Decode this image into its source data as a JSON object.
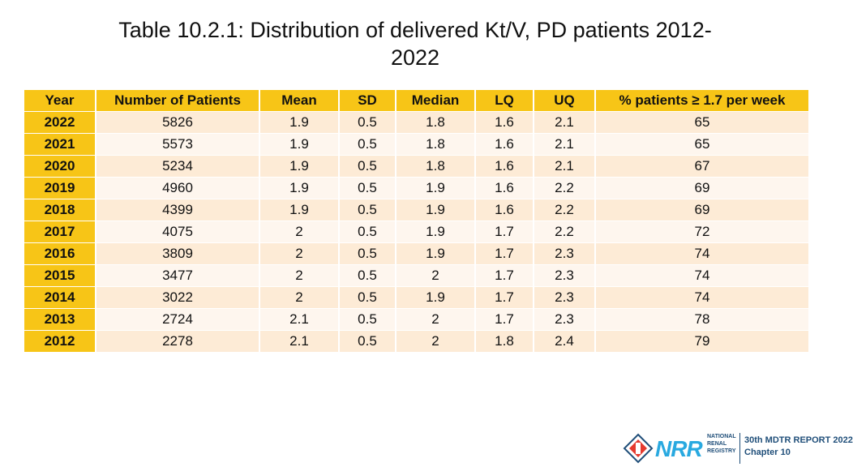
{
  "title_line1": "Table 10.2.1: Distribution of delivered Kt/V, PD patients 2012-",
  "title_line2": "2022",
  "table": {
    "headers": [
      "Year",
      "Number of Patients",
      "Mean",
      "SD",
      "Median",
      "LQ",
      "UQ",
      "% patients ≥ 1.7 per week"
    ],
    "rows": [
      [
        "2022",
        "5826",
        "1.9",
        "0.5",
        "1.8",
        "1.6",
        "2.1",
        "65"
      ],
      [
        "2021",
        "5573",
        "1.9",
        "0.5",
        "1.8",
        "1.6",
        "2.1",
        "65"
      ],
      [
        "2020",
        "5234",
        "1.9",
        "0.5",
        "1.8",
        "1.6",
        "2.1",
        "67"
      ],
      [
        "2019",
        "4960",
        "1.9",
        "0.5",
        "1.9",
        "1.6",
        "2.2",
        "69"
      ],
      [
        "2018",
        "4399",
        "1.9",
        "0.5",
        "1.9",
        "1.6",
        "2.2",
        "69"
      ],
      [
        "2017",
        "4075",
        "2",
        "0.5",
        "1.9",
        "1.7",
        "2.2",
        "72"
      ],
      [
        "2016",
        "3809",
        "2",
        "0.5",
        "1.9",
        "1.7",
        "2.3",
        "74"
      ],
      [
        "2015",
        "3477",
        "2",
        "0.5",
        "2",
        "1.7",
        "2.3",
        "74"
      ],
      [
        "2014",
        "3022",
        "2",
        "0.5",
        "1.9",
        "1.7",
        "2.3",
        "74"
      ],
      [
        "2013",
        "2724",
        "2.1",
        "0.5",
        "2",
        "1.7",
        "2.3",
        "78"
      ],
      [
        "2012",
        "2278",
        "2.1",
        "0.5",
        "2",
        "1.8",
        "2.4",
        "79"
      ]
    ]
  },
  "footer": {
    "logo_text": "NRR",
    "registry_lines": [
      "NATIONAL",
      "RENAL",
      "REGISTRY"
    ],
    "report_title": "30th MDTR REPORT 2022",
    "chapter": "Chapter 10"
  },
  "colors": {
    "header_bg": "#f7c517",
    "row_odd": "#fdebd6",
    "row_even": "#fef6ee",
    "brand_blue": "#29a9e0",
    "brand_navy": "#1f4e79",
    "brand_red": "#e53a2f"
  }
}
